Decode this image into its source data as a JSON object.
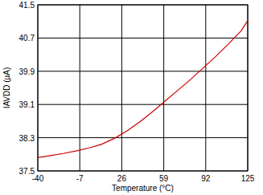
{
  "chart_data": {
    "type": "line",
    "x_label": "Temperature (°C)",
    "y_label": "IAVDD (μA)",
    "x": [
      -40,
      -30,
      -20,
      -10,
      0,
      10,
      20,
      30,
      40,
      50,
      60,
      70,
      80,
      90,
      100,
      110,
      120,
      125
    ],
    "series": [
      {
        "name": "IAVDD",
        "color": "#cc0000",
        "values": [
          37.82,
          37.87,
          37.92,
          37.98,
          38.05,
          38.14,
          38.28,
          38.46,
          38.68,
          38.92,
          39.18,
          39.44,
          39.7,
          39.98,
          40.26,
          40.56,
          40.88,
          41.12
        ]
      }
    ],
    "xlim": [
      -40,
      125
    ],
    "xticks": [
      -40,
      -7,
      26,
      59,
      92,
      125
    ],
    "ylim": [
      37.5,
      41.5
    ],
    "yticks": [
      37.5,
      38.3,
      39.1,
      39.9,
      40.7,
      41.5
    ],
    "grid": true
  }
}
